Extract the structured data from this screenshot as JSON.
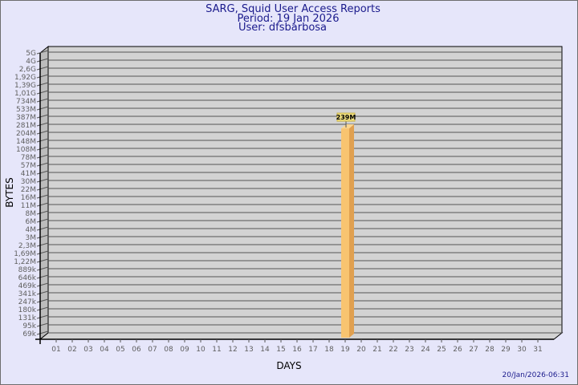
{
  "header": {
    "title": "SARG, Squid User Access Reports",
    "period": "Period: 19 Jan 2026",
    "user": "User: dfsbarbosa"
  },
  "footer": {
    "timestamp": "20/Jan/2026-06:31"
  },
  "colors": {
    "background": "#e6e6fa",
    "plot": "#d3d3d3",
    "bar": "#f8c470",
    "bar_side": "#e0a050",
    "label_box": "#f0e080",
    "title": "#1a1a8c"
  },
  "chart_data": {
    "type": "bar",
    "title": "SARG, Squid User Access Reports",
    "xlabel": "DAYS",
    "ylabel": "BYTES",
    "y_scale": "log-like (nonuniform tick labels)",
    "grid": true,
    "categories": [
      "01",
      "02",
      "03",
      "04",
      "05",
      "06",
      "07",
      "08",
      "09",
      "10",
      "11",
      "12",
      "13",
      "14",
      "15",
      "16",
      "17",
      "18",
      "19",
      "20",
      "21",
      "22",
      "23",
      "24",
      "25",
      "26",
      "27",
      "28",
      "29",
      "30",
      "31"
    ],
    "y_ticks": [
      "5G",
      "4G",
      "2,6G",
      "1,92G",
      "1,39G",
      "1,01G",
      "734M",
      "533M",
      "387M",
      "281M",
      "204M",
      "148M",
      "108M",
      "78M",
      "57M",
      "41M",
      "30M",
      "22M",
      "16M",
      "11M",
      "8M",
      "6M",
      "4M",
      "3M",
      "2,3M",
      "1,69M",
      "1,22M",
      "889k",
      "646k",
      "469k",
      "341k",
      "247k",
      "180k",
      "131k",
      "95k",
      "69k"
    ],
    "bars": [
      {
        "day": "19",
        "value": "239M",
        "label": "239M"
      }
    ]
  }
}
